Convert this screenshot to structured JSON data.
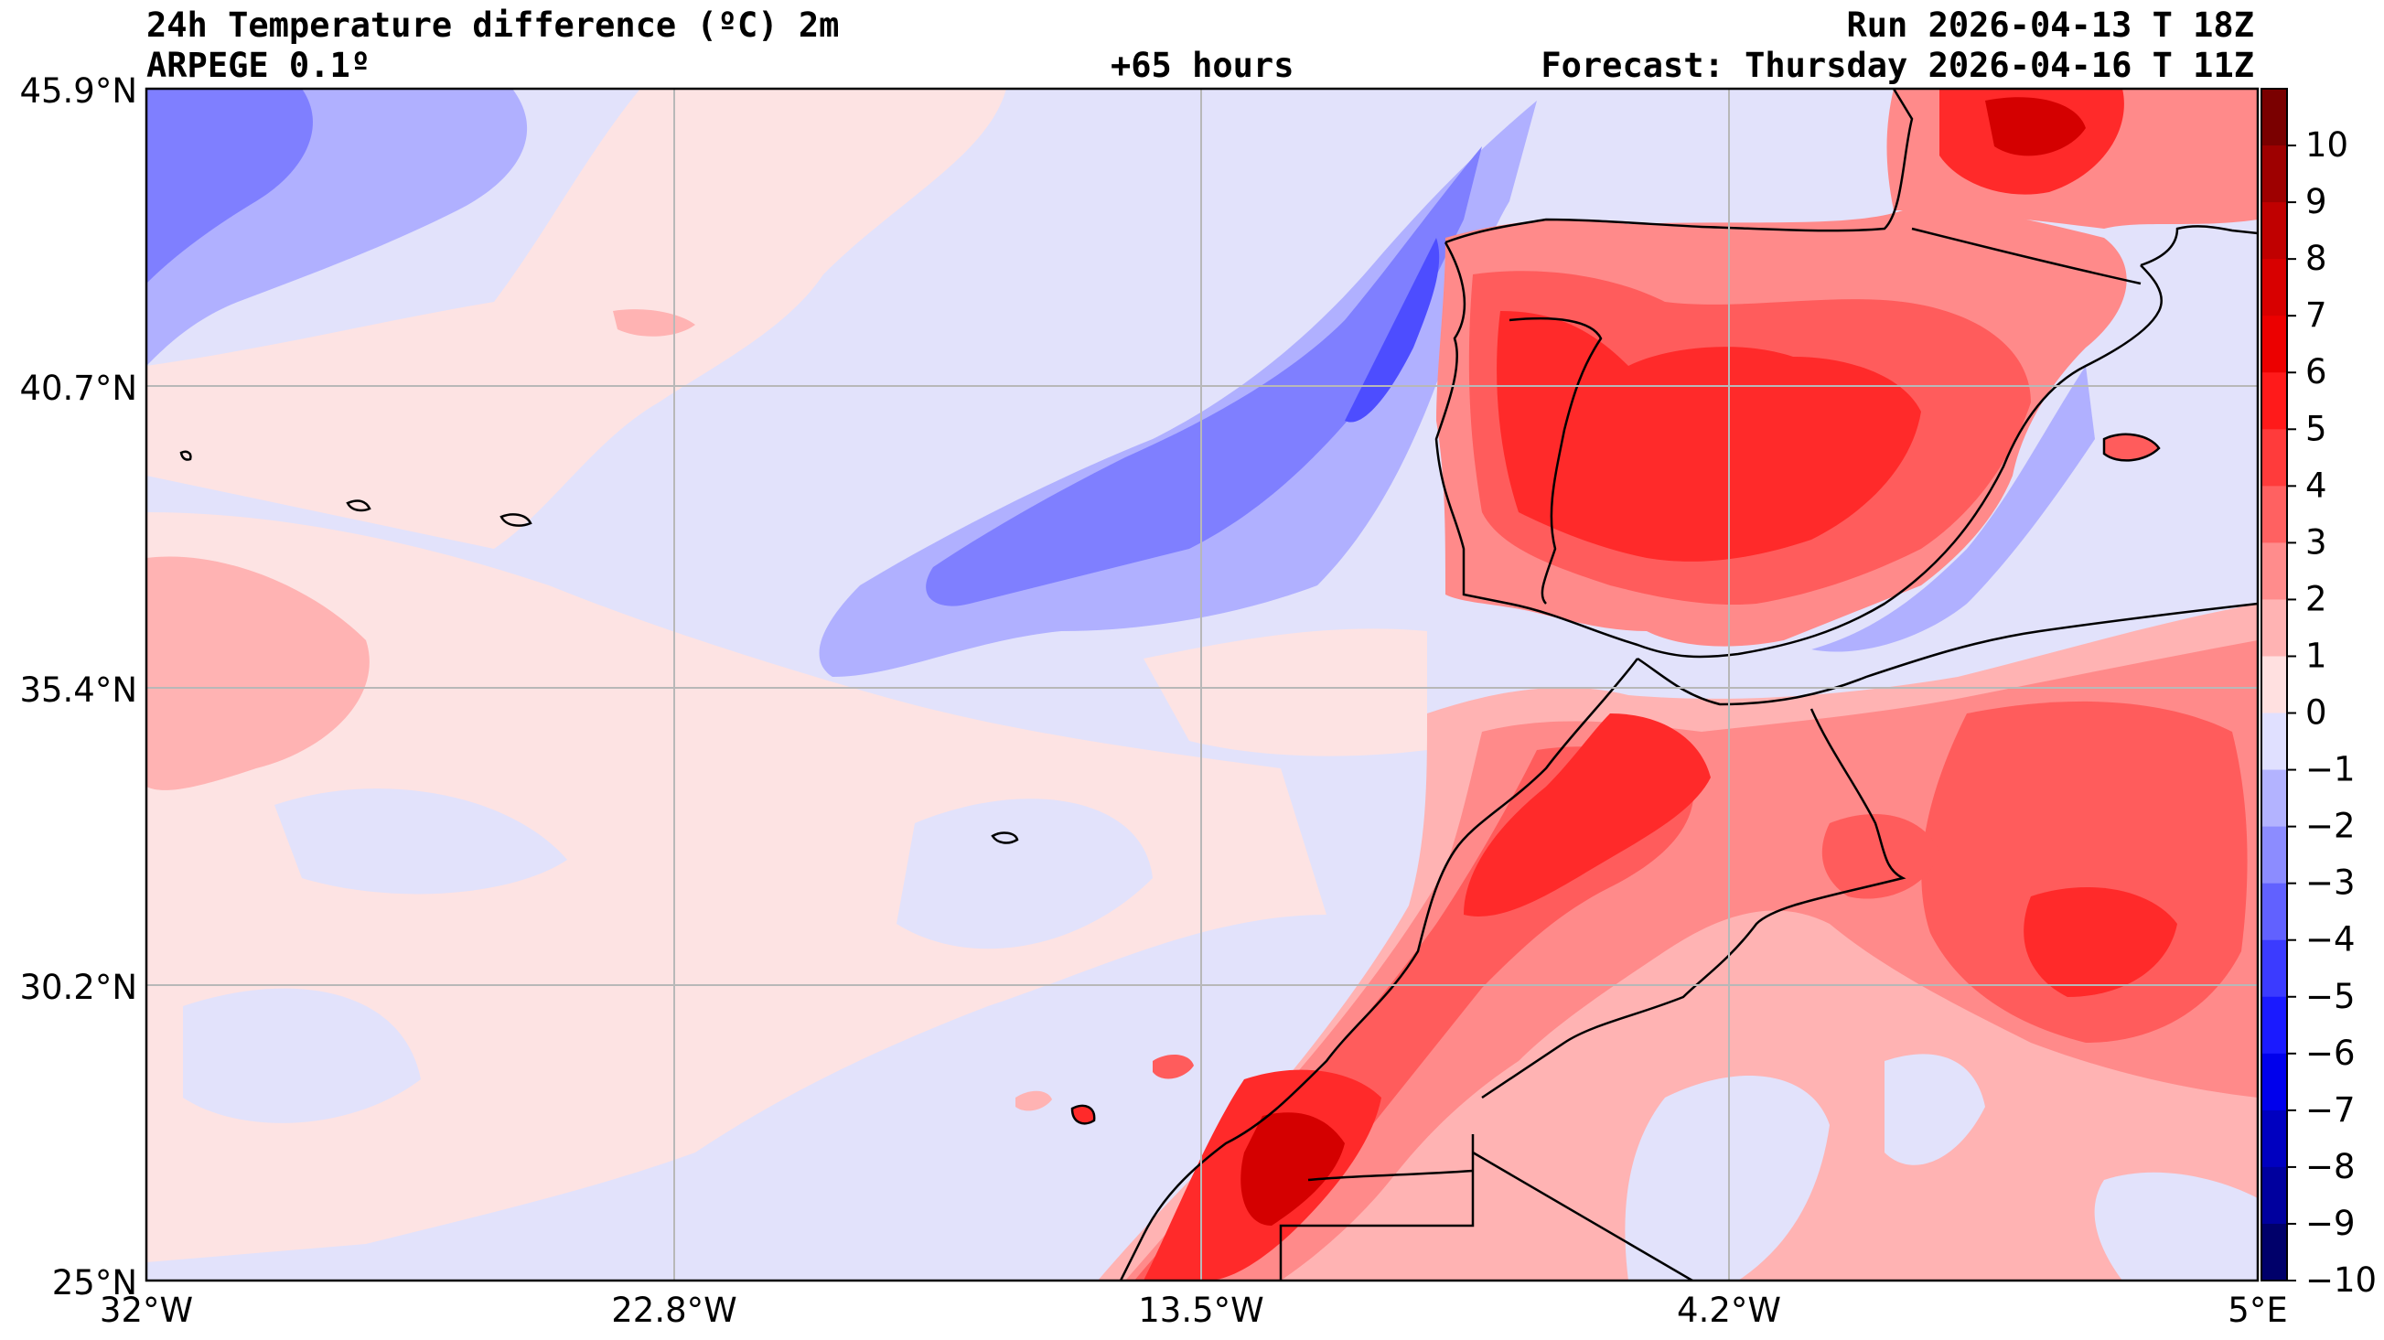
{
  "header": {
    "title": "24h Temperature difference (ºC) 2m",
    "model": "ARPEGE 0.1º",
    "lead": "+65 hours",
    "run": "Run 2026-04-13 T 18Z",
    "forecast": "Forecast: Thursday 2026-04-16 T 11Z"
  },
  "axes": {
    "x_ticks": [
      "32°W",
      "22.8°W",
      "13.5°W",
      "4.2°W",
      "5°E"
    ],
    "y_ticks": [
      "45.9°N",
      "40.7°N",
      "35.4°N",
      "30.2°N",
      "25°N"
    ]
  },
  "colorbar": {
    "labels": [
      "10",
      "9",
      "8",
      "7",
      "6",
      "5",
      "4",
      "3",
      "2",
      "1",
      "0",
      "−1",
      "−2",
      "−3",
      "−4",
      "−5",
      "−6",
      "−7",
      "−8",
      "−9",
      "−10"
    ],
    "colors": [
      "#7a0000",
      "#9e0000",
      "#c00000",
      "#d80000",
      "#ec0000",
      "#ff1a1a",
      "#ff3b3b",
      "#ff6161",
      "#ff8c8c",
      "#ffb3b3",
      "#ffe0e0",
      "#e0e0ff",
      "#b3b3ff",
      "#8c8cff",
      "#6161ff",
      "#3b3bff",
      "#1a1aff",
      "#0000ec",
      "#0000c0",
      "#00009e",
      "#00006a"
    ]
  },
  "palette": {
    "ocean_neutral_blue": "#e2e2fb",
    "ocean_neutral_pink": "#fde3e3",
    "warm_1": "#ffb3b3",
    "warm_2": "#ff8a8a",
    "warm_3": "#ff5c5c",
    "warm_4": "#ff2a2a",
    "warm_5": "#d40000",
    "cool_1": "#b0b0ff",
    "cool_2": "#7f7fff",
    "cool_3": "#4d4dff",
    "coast": "#000000",
    "grid": "#b8b8b8"
  }
}
